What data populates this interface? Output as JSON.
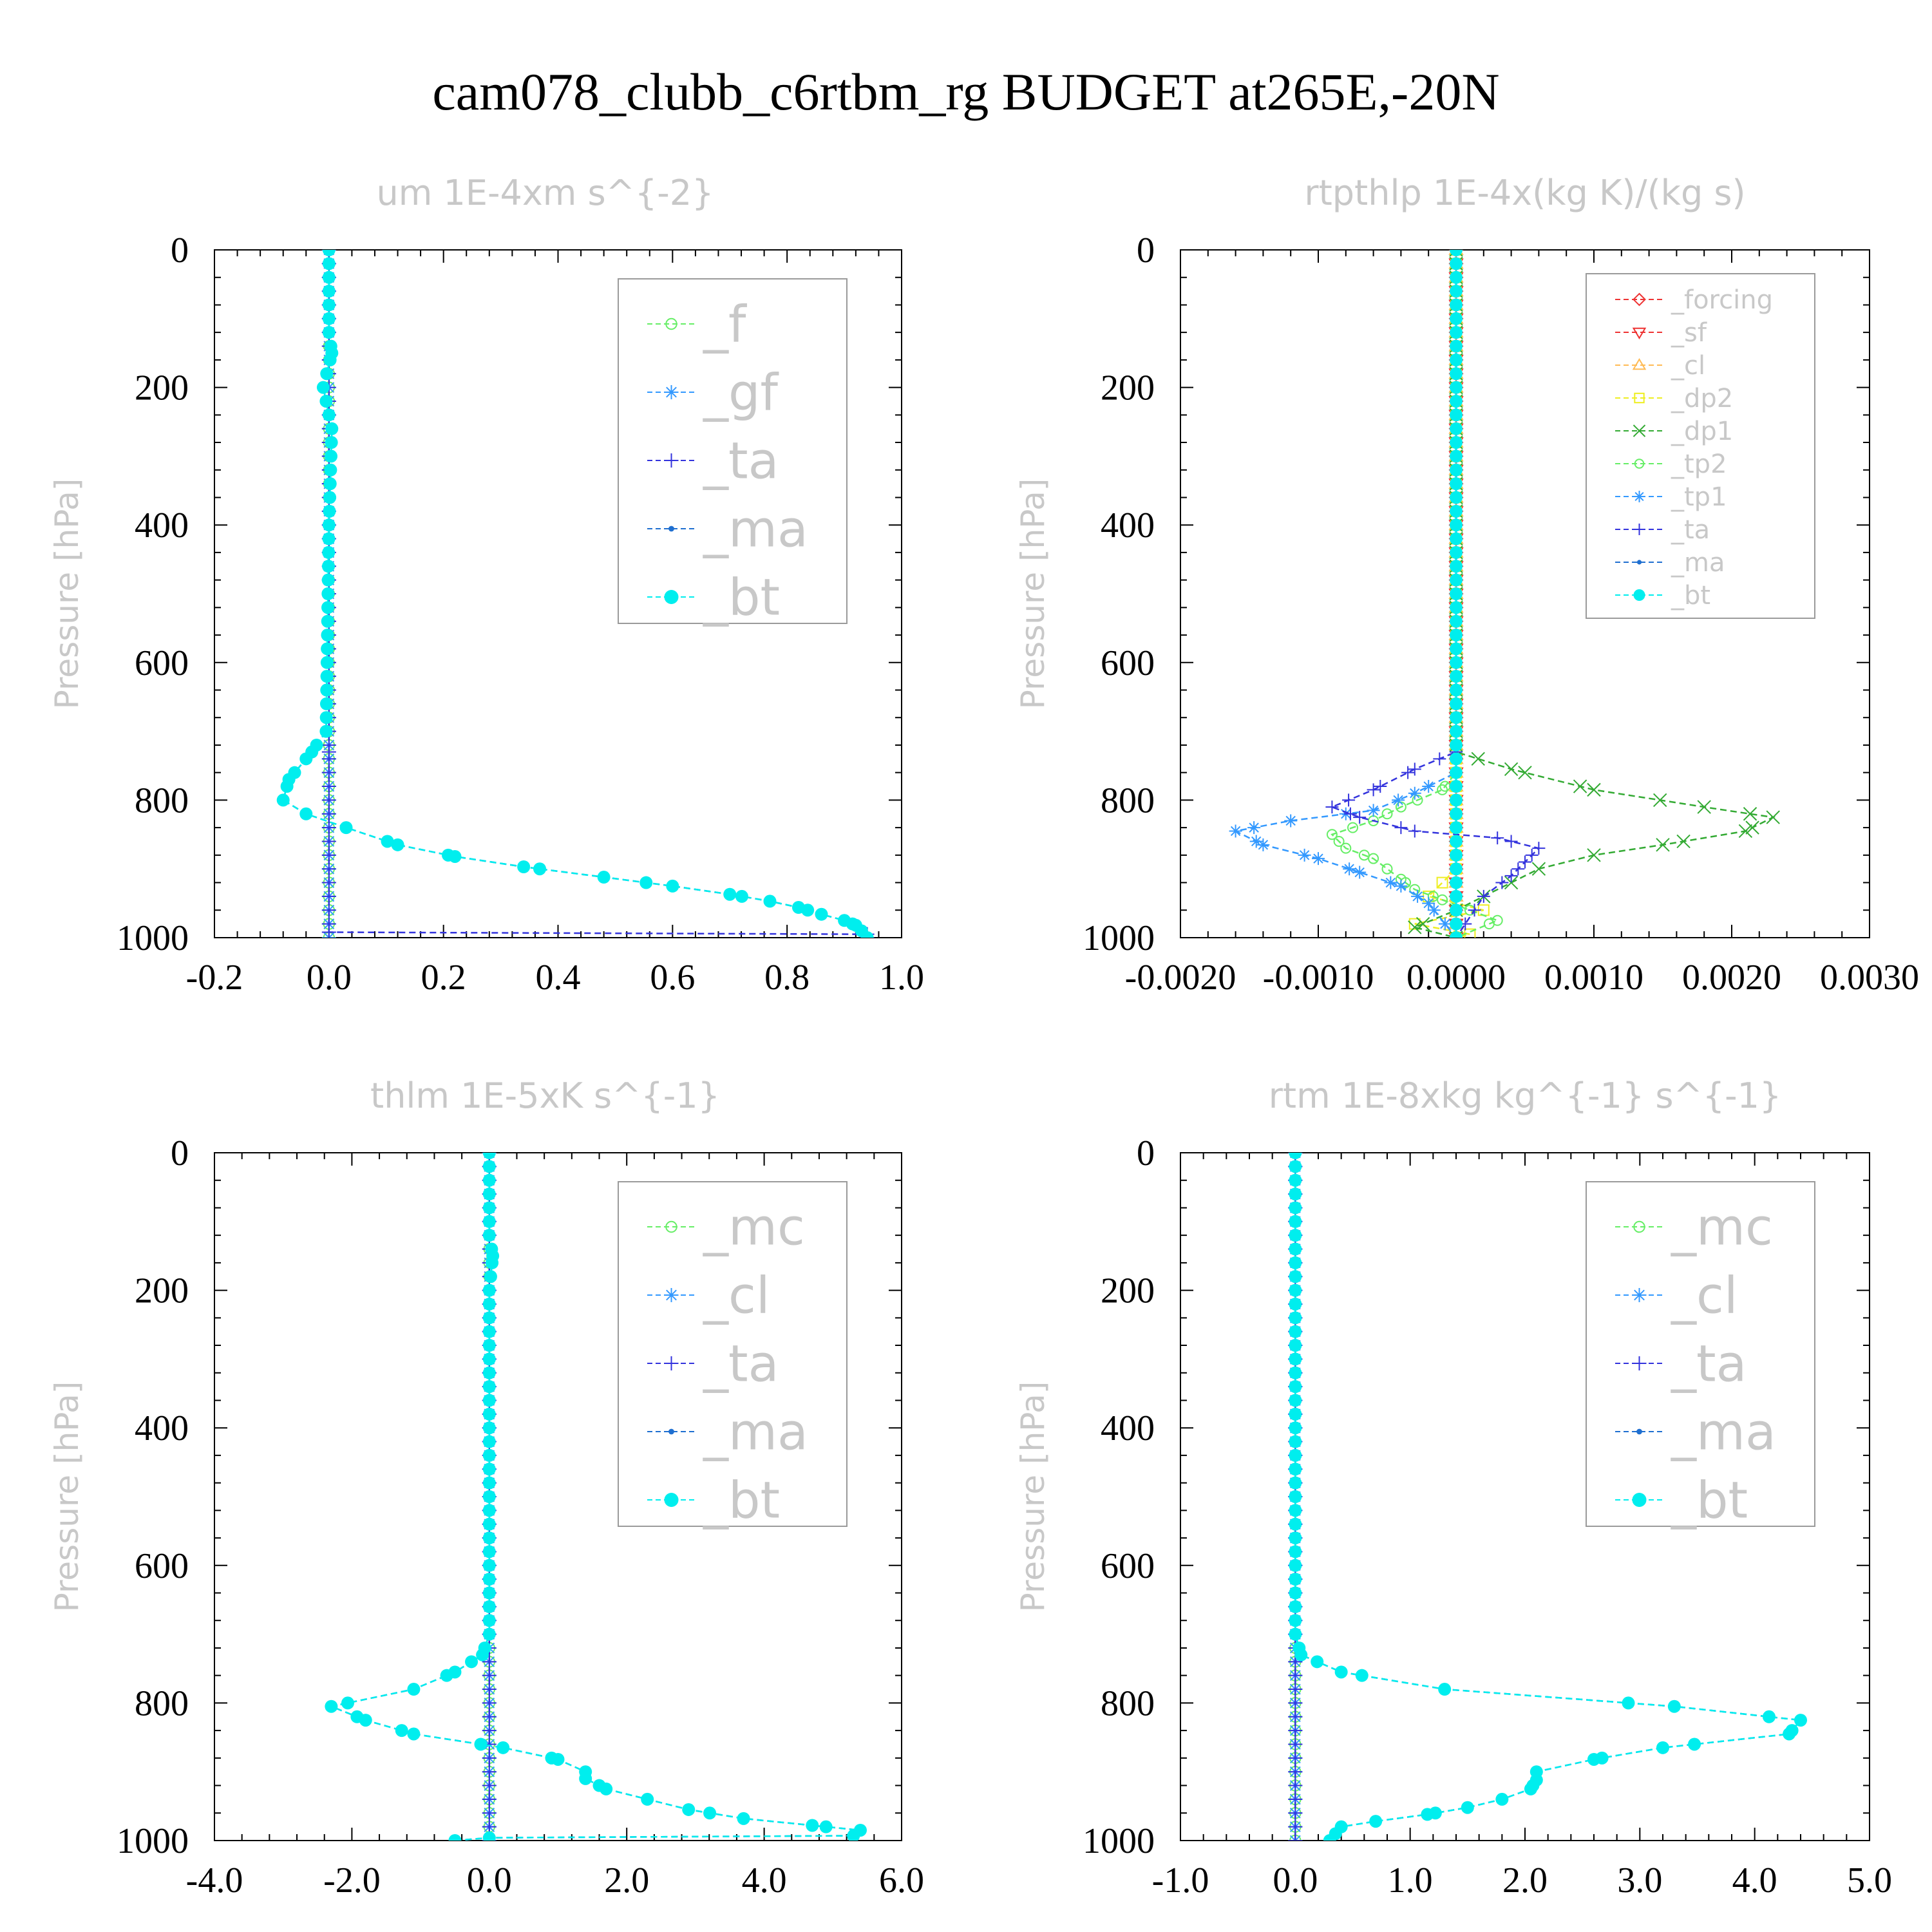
{
  "figure_title": "cam078_clubb_c6rtbm_rg  BUDGET at265E,-20N",
  "chart_data": [
    {
      "type": "line",
      "title": "um  1E-4xm s^{-2}",
      "ylabel": "Pressure [hPa]",
      "xlabel": "",
      "xlim": [
        -0.2,
        1.0
      ],
      "ylim": [
        1000,
        0
      ],
      "yticks": [
        "0",
        "200",
        "400",
        "600",
        "800",
        "1000"
      ],
      "xticks": [
        "-0.2",
        "0.0",
        "0.2",
        "0.4",
        "0.6",
        "0.8",
        "1.0"
      ],
      "legend_position": "top-right",
      "legend_size": "large",
      "series": [
        {
          "name": "_f",
          "color": "#66ee66",
          "marker": "circle-open",
          "x": [
            0,
            0
          ],
          "y": [
            0,
            1000
          ]
        },
        {
          "name": "_gf",
          "color": "#3399ff",
          "marker": "asterisk",
          "x": [
            0,
            0
          ],
          "y": [
            0,
            1000
          ]
        },
        {
          "name": "_ta",
          "color": "#3333dd",
          "marker": "plus",
          "x": [
            0,
            0,
            0,
            0.94,
            0.94
          ],
          "y": [
            0,
            730,
            992,
            995,
            1000
          ]
        },
        {
          "name": "_ma",
          "color": "#1f6fd0",
          "marker": "dot",
          "x": [
            0,
            0,
            0.005,
            -0.01,
            0.005,
            0,
            -0.005,
            -0.03,
            -0.07,
            -0.08,
            -0.04,
            0.03,
            0.12,
            0.22,
            0.34,
            0.48,
            0.6,
            0.7,
            0.77,
            0.82,
            0.86,
            0.9,
            0.92,
            0.93,
            0.94
          ],
          "y": [
            0,
            120,
            150,
            200,
            260,
            400,
            700,
            730,
            770,
            800,
            820,
            840,
            865,
            882,
            897,
            912,
            925,
            937,
            947,
            956,
            966,
            975,
            982,
            990,
            1000
          ]
        },
        {
          "name": "_bt",
          "color": "#00eeee",
          "marker": "disc",
          "x": [
            0,
            0,
            0.005,
            -0.01,
            0.005,
            0,
            -0.005,
            -0.03,
            -0.07,
            -0.08,
            -0.04,
            0.03,
            0.12,
            0.22,
            0.34,
            0.48,
            0.6,
            0.7,
            0.77,
            0.82,
            0.86,
            0.9,
            0.92,
            0.93,
            0.94
          ],
          "y": [
            0,
            120,
            150,
            200,
            260,
            400,
            700,
            730,
            770,
            800,
            820,
            840,
            865,
            882,
            897,
            912,
            925,
            937,
            947,
            956,
            966,
            975,
            982,
            990,
            1000
          ]
        }
      ]
    },
    {
      "type": "line",
      "title": "rtpthlp  1E-4x(kg K)/(kg s)",
      "ylabel": "Pressure [hPa]",
      "xlabel": "",
      "xlim": [
        -0.002,
        0.003
      ],
      "ylim": [
        1000,
        0
      ],
      "yticks": [
        "0",
        "200",
        "400",
        "600",
        "800",
        "1000"
      ],
      "xticks": [
        "-0.0020",
        "-0.0010",
        "0.0000",
        "0.0010",
        "0.0020",
        "0.0030"
      ],
      "legend_position": "top-right",
      "legend_size": "small",
      "series": [
        {
          "name": "_forcing",
          "color": "#ee3333",
          "marker": "diamond-open",
          "x": [
            0,
            0
          ],
          "y": [
            0,
            1000
          ]
        },
        {
          "name": "_sf",
          "color": "#ee3333",
          "marker": "triangle-down",
          "x": [
            0,
            0
          ],
          "y": [
            0,
            1000
          ]
        },
        {
          "name": "_cl",
          "color": "#ffbb55",
          "marker": "triangle-up",
          "x": [
            0,
            0
          ],
          "y": [
            0,
            1000
          ]
        },
        {
          "name": "_dp2",
          "color": "#eeee22",
          "marker": "square-open",
          "x": [
            0,
            0,
            -0.0002,
            0.0002,
            -0.0003,
            0.0001,
            0
          ],
          "y": [
            0,
            900,
            940,
            960,
            980,
            995,
            1000
          ]
        },
        {
          "name": "_dp1",
          "color": "#33aa33",
          "marker": "x",
          "x": [
            0,
            0,
            0.0004,
            0.001,
            0.0018,
            0.0023,
            0.0021,
            0.0015,
            0.001,
            0.0006,
            0.0004,
            0.0002,
            0,
            -0.0003,
            0
          ],
          "y": [
            0,
            730,
            755,
            785,
            810,
            825,
            845,
            865,
            880,
            900,
            920,
            940,
            960,
            985,
            1000
          ]
        },
        {
          "name": "_tp2",
          "color": "#66ee66",
          "marker": "circle-open",
          "x": [
            0,
            0,
            -0.0001,
            -0.0004,
            -0.0006,
            -0.0009,
            -0.0008,
            -0.0006,
            -0.0005,
            -0.0004,
            -0.0003,
            -0.0001,
            0.0001,
            0.0003,
            0
          ],
          "y": [
            0,
            760,
            785,
            810,
            830,
            850,
            870,
            885,
            900,
            915,
            930,
            945,
            960,
            975,
            1000
          ]
        },
        {
          "name": "_tp1",
          "color": "#3399ff",
          "marker": "asterisk",
          "x": [
            0,
            0,
            -0.0003,
            -0.0006,
            -0.0012,
            -0.0016,
            -0.0014,
            -0.001,
            -0.0007,
            -0.0004,
            -0.0002,
            0
          ],
          "y": [
            0,
            760,
            790,
            815,
            830,
            845,
            865,
            885,
            905,
            925,
            950,
            1000
          ]
        },
        {
          "name": "_ta",
          "color": "#3333dd",
          "marker": "plus",
          "x": [
            0,
            0,
            -0.0003,
            -0.0006,
            -0.0009,
            -0.0007,
            -0.0003,
            0.0003,
            0.0006,
            0.0005,
            0.0004,
            0.0002,
            0
          ],
          "y": [
            0,
            730,
            755,
            785,
            810,
            825,
            845,
            855,
            870,
            890,
            910,
            940,
            1000
          ]
        },
        {
          "name": "_ma",
          "color": "#1f6fd0",
          "marker": "dot",
          "x": [
            0,
            0
          ],
          "y": [
            0,
            1000
          ]
        },
        {
          "name": "_bt",
          "color": "#00eeee",
          "marker": "disc",
          "x": [
            0,
            0
          ],
          "y": [
            0,
            1000
          ]
        }
      ]
    },
    {
      "type": "line",
      "title": "thlm  1E-5xK s^{-1}",
      "ylabel": "Pressure [hPa]",
      "xlabel": "",
      "xlim": [
        -4.0,
        6.0
      ],
      "ylim": [
        1000,
        0
      ],
      "yticks": [
        "0",
        "200",
        "400",
        "600",
        "800",
        "1000"
      ],
      "xticks": [
        "-4.0",
        "-2.0",
        "0.0",
        "2.0",
        "4.0",
        "6.0"
      ],
      "legend_position": "top-right",
      "legend_size": "large",
      "series": [
        {
          "name": "_mc",
          "color": "#66ee66",
          "marker": "circle-open",
          "x": [
            0,
            0
          ],
          "y": [
            0,
            1000
          ]
        },
        {
          "name": "_cl",
          "color": "#3399ff",
          "marker": "asterisk",
          "x": [
            0,
            0
          ],
          "y": [
            0,
            1000
          ]
        },
        {
          "name": "_ta",
          "color": "#3333dd",
          "marker": "plus",
          "x": [
            0,
            0
          ],
          "y": [
            0,
            1000
          ]
        },
        {
          "name": "_ma",
          "color": "#1f6fd0",
          "marker": "dot",
          "x": [
            0,
            0,
            0.05,
            0,
            0,
            -0.1,
            -0.5,
            -1.1,
            -2.3,
            -1.8,
            -1.1,
            0.2,
            1.0,
            1.4,
            1.4,
            1.7,
            2.3,
            2.9,
            3.7,
            4.7,
            5.4,
            5.3,
            0.0,
            -0.5
          ],
          "y": [
            0,
            120,
            150,
            200,
            700,
            730,
            755,
            780,
            805,
            825,
            845,
            865,
            882,
            900,
            910,
            925,
            940,
            955,
            968,
            978,
            985,
            993,
            996,
            1000
          ]
        },
        {
          "name": "_bt",
          "color": "#00eeee",
          "marker": "disc",
          "x": [
            0,
            0,
            0.05,
            0,
            0,
            -0.1,
            -0.5,
            -1.1,
            -2.3,
            -1.8,
            -1.1,
            0.2,
            1.0,
            1.4,
            1.4,
            1.7,
            2.3,
            2.9,
            3.7,
            4.7,
            5.4,
            5.3,
            0.0,
            -0.5
          ],
          "y": [
            0,
            120,
            150,
            200,
            700,
            730,
            755,
            780,
            805,
            825,
            845,
            865,
            882,
            900,
            910,
            925,
            940,
            955,
            968,
            978,
            985,
            993,
            996,
            1000
          ]
        }
      ]
    },
    {
      "type": "line",
      "title": "rtm  1E-8xkg kg^{-1} s^{-1}",
      "ylabel": "Pressure [hPa]",
      "xlabel": "",
      "xlim": [
        -1.0,
        5.0
      ],
      "ylim": [
        1000,
        0
      ],
      "yticks": [
        "0",
        "200",
        "400",
        "600",
        "800",
        "1000"
      ],
      "xticks": [
        "-1.0",
        "0.0",
        "1.0",
        "2.0",
        "3.0",
        "4.0",
        "5.0"
      ],
      "legend_position": "top-right",
      "legend_size": "large",
      "series": [
        {
          "name": "_mc",
          "color": "#66ee66",
          "marker": "circle-open",
          "x": [
            0,
            0
          ],
          "y": [
            0,
            1000
          ]
        },
        {
          "name": "_cl",
          "color": "#3399ff",
          "marker": "asterisk",
          "x": [
            0,
            0
          ],
          "y": [
            0,
            1000
          ]
        },
        {
          "name": "_ta",
          "color": "#3333dd",
          "marker": "plus",
          "x": [
            0,
            0
          ],
          "y": [
            0,
            1000
          ]
        },
        {
          "name": "_ma",
          "color": "#1f6fd0",
          "marker": "dot",
          "x": [
            0,
            0,
            0.05,
            0.4,
            1.3,
            3.3,
            4.4,
            4.3,
            3.2,
            2.6,
            2.1,
            2.1,
            2.05,
            1.8,
            1.5,
            1.15,
            0.7,
            0.4,
            0.35,
            0.3
          ],
          "y": [
            0,
            700,
            730,
            755,
            780,
            805,
            825,
            845,
            865,
            882,
            900,
            912,
            925,
            940,
            952,
            962,
            972,
            980,
            990,
            1000
          ]
        },
        {
          "name": "_bt",
          "color": "#00eeee",
          "marker": "disc",
          "x": [
            0,
            0,
            0.05,
            0.4,
            1.3,
            3.3,
            4.4,
            4.3,
            3.2,
            2.6,
            2.1,
            2.1,
            2.05,
            1.8,
            1.5,
            1.15,
            0.7,
            0.4,
            0.35,
            0.3
          ],
          "y": [
            0,
            700,
            730,
            755,
            780,
            805,
            825,
            845,
            865,
            882,
            900,
            912,
            925,
            940,
            952,
            962,
            972,
            980,
            990,
            1000
          ]
        }
      ]
    }
  ]
}
